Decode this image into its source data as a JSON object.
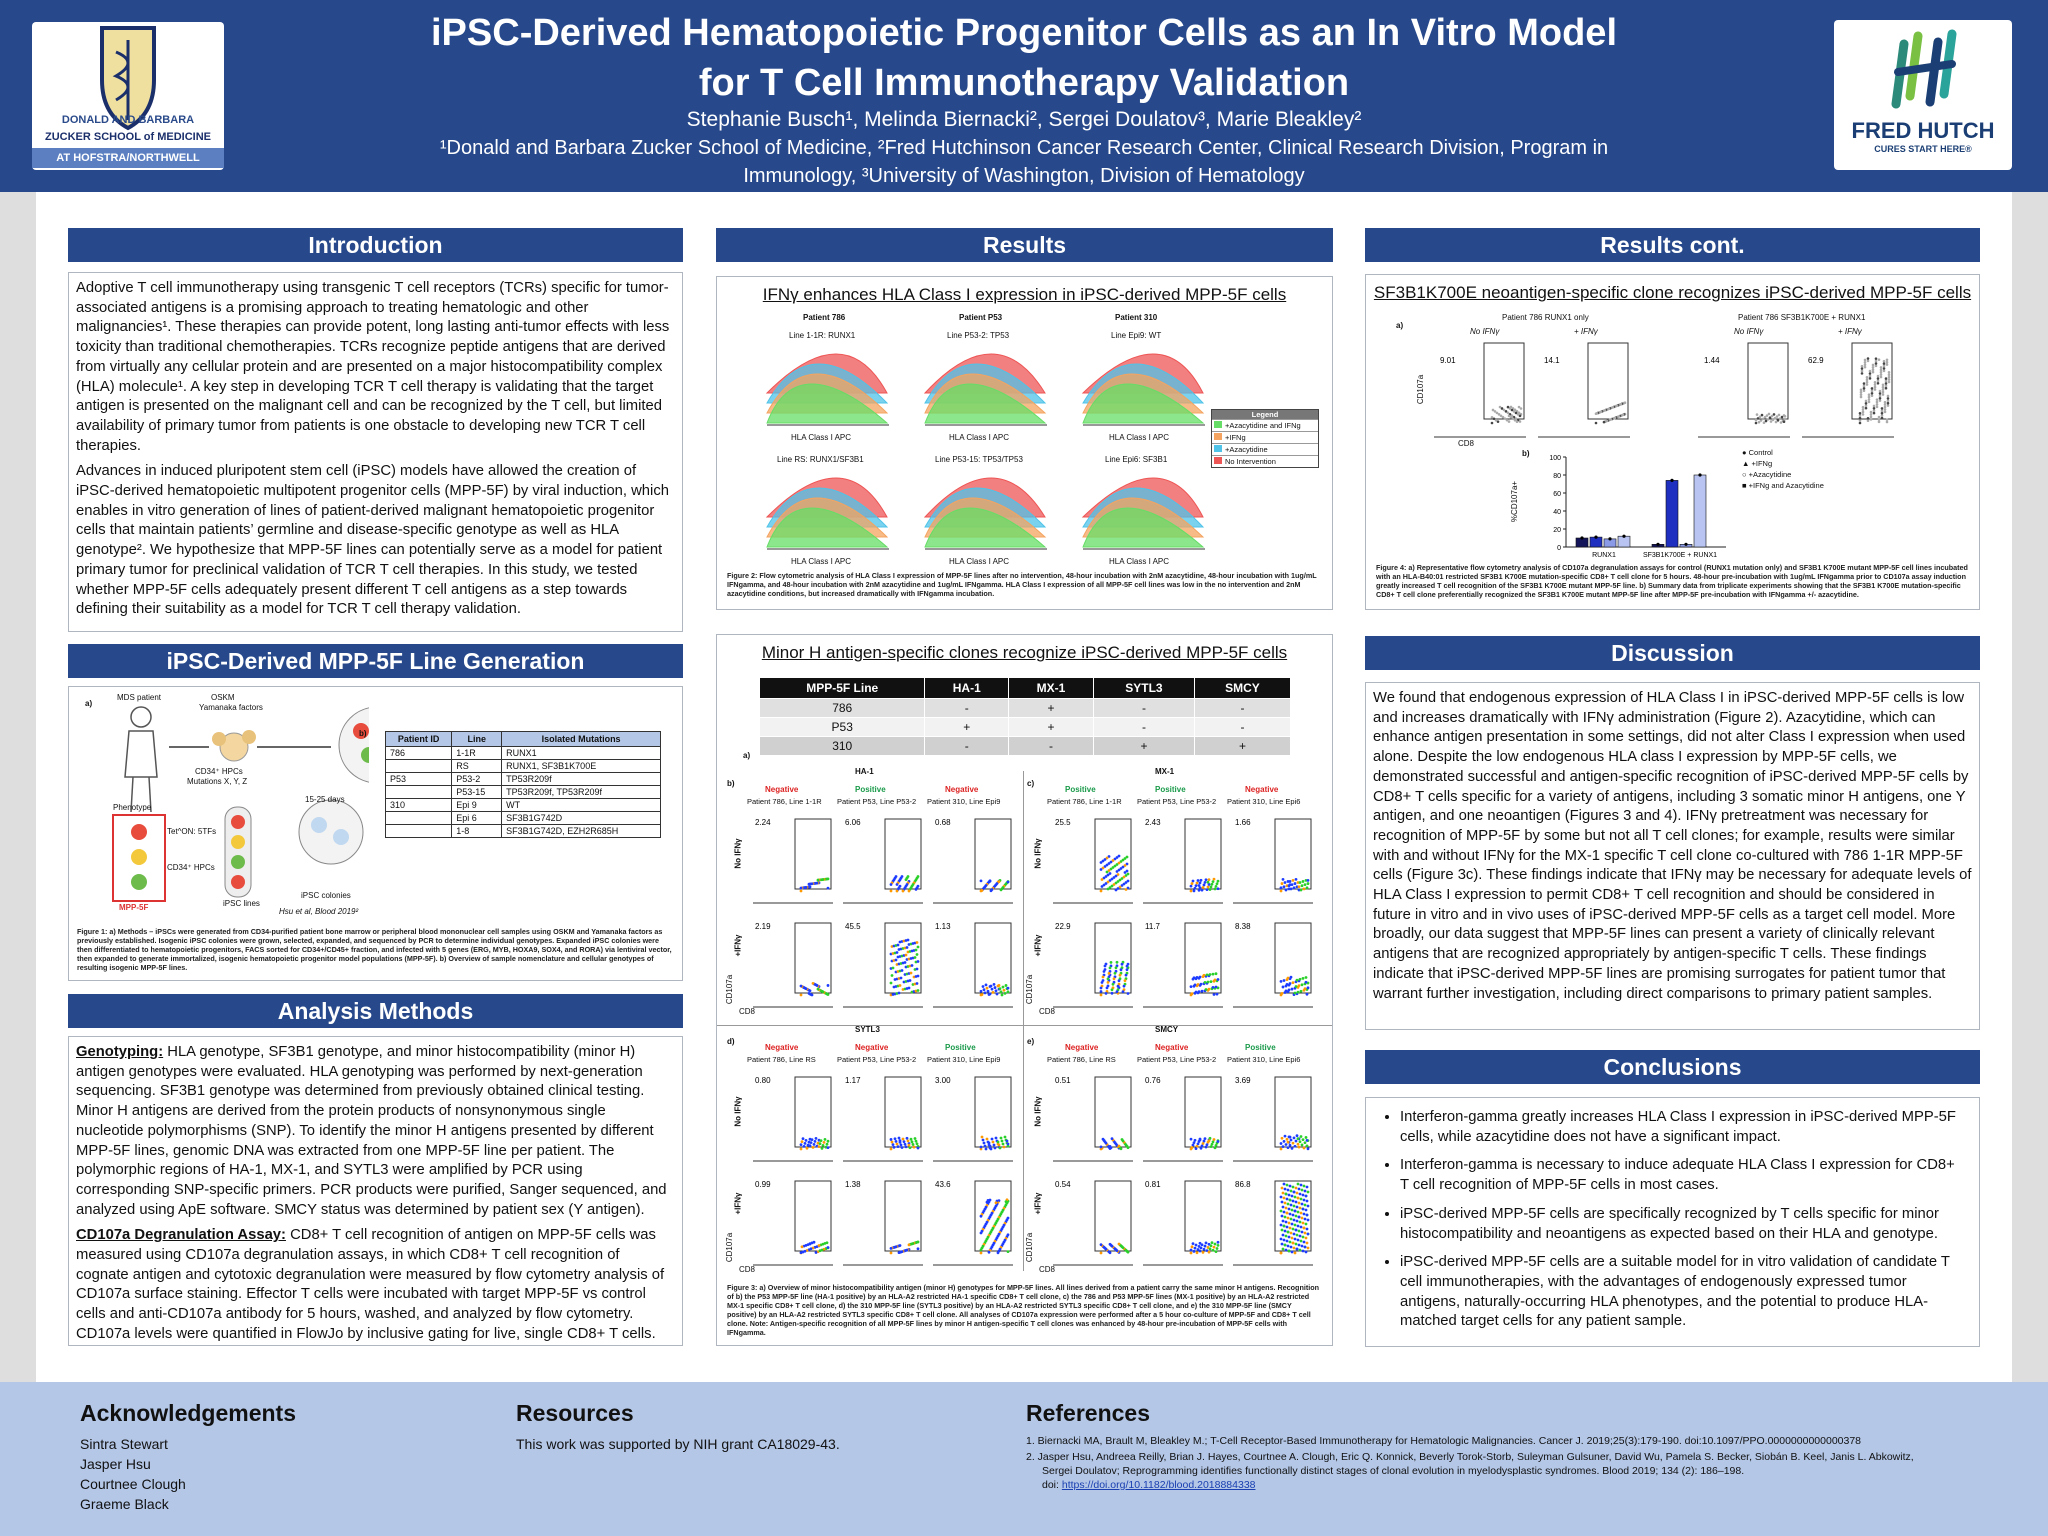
{
  "header": {
    "title_line1": "iPSC-Derived Hematopoietic Progenitor Cells as an In Vitro Model",
    "title_line2": "for T Cell Immunotherapy Validation",
    "authors": "Stephanie Busch¹, Melinda Biernacki², Sergei Doulatov³, Marie Bleakley²",
    "affiliations": "¹Donald and Barbara Zucker School of Medicine, ²Fred Hutchinson Cancer Research Center, Clinical Research Division, Program in Immunology, ³University of Washington, Division of Hematology",
    "logo_left_l1": "DONALD AND BARBARA",
    "logo_left_l2": "ZUCKER SCHOOL of MEDICINE",
    "logo_left_l3": "AT HOFSTRA/NORTHWELL",
    "logo_right_name": "FRED HUTCH",
    "logo_right_tag": "CURES START HERE®"
  },
  "intro": {
    "heading": "Introduction",
    "p1": "Adoptive T cell immunotherapy using transgenic T cell receptors (TCRs) specific for tumor-associated antigens is a promising approach to treating hematologic and other malignancies¹. These therapies can provide potent, long lasting anti-tumor effects with less toxicity than traditional chemotherapies. TCRs recognize peptide antigens that are derived from virtually any cellular protein and are presented on a major histocompatibility complex (HLA) molecule¹. A key step in developing TCR T cell therapy is validating that the target antigen is presented on the malignant cell and can be recognized by the T cell, but limited availability of primary tumor from patients is one obstacle to developing new TCR T cell therapies.",
    "p2": "Advances in induced pluripotent stem cell (iPSC) models have allowed the creation of iPSC-derived hematopoietic multipotent progenitor cells (MPP-5F) by viral induction, which enables in vitro generation of lines of patient-derived malignant hematopoietic progenitor cells that maintain patients’ germline and disease-specific genotype as well as HLA genotype². We hypothesize that MPP-5F lines can potentially serve as a model for patient primary tumor for preclinical validation of TCR T cell therapies. In this study, we tested whether MPP-5F cells adequately present different T cell antigens as a step towards defining their suitability as a model for TCR T cell therapy validation."
  },
  "mpp": {
    "heading": "iPSC-Derived MPP-5F Line Generation",
    "labels": [
      "a)",
      "MDS patient",
      "OSKM",
      "Yamanaka factors",
      "CD34⁺ HPCs",
      "Mutations X, Y, Z",
      "15-25 days",
      "Phenotype",
      "Tet^ON: 5TFs",
      "CD34⁺ HPCs",
      "iPSC lines",
      "iPSC colonies",
      "MPP-5F",
      "Hsu et al, Blood 2019²",
      "b)"
    ],
    "table_head": [
      "Patient ID",
      "Line",
      "Isolated Mutations"
    ],
    "table_rows": [
      [
        "786",
        "1-1R",
        "RUNX1"
      ],
      [
        "",
        "RS",
        "RUNX1, SF3B1K700E"
      ],
      [
        "P53",
        "P53-2",
        "TP53R209f"
      ],
      [
        "",
        "P53-15",
        "TP53R209f, TP53R209f"
      ],
      [
        "310",
        "Epi 9",
        "WT"
      ],
      [
        "",
        "Epi 6",
        "SF3B1G742D"
      ],
      [
        "",
        "1-8",
        "SF3B1G742D, EZH2R685H"
      ]
    ],
    "caption": "Figure 1: a) Methods – iPSCs were generated from CD34-purified patient bone marrow or peripheral blood mononuclear cell samples using OSKM and Yamanaka factors as previously established. Isogenic iPSC colonies were grown, selected, expanded, and sequenced by PCR to determine individual genotypes. Expanded iPSC colonies were then differentiated to hematopoietic progenitors, FACS sorted for CD34+/CD45+ fraction, and infected with 5 genes (ERG, MYB, HOXA9, SOX4, and RORA) via lentiviral vector, then expanded to generate immortalized, isogenic hematopoietic progenitor model populations (MPP-5F). b) Overview of sample nomenclature and cellular genotypes of resulting isogenic MPP-5F lines."
  },
  "methods": {
    "heading": "Analysis Methods",
    "geno_label": "Genotyping:",
    "geno_text": " HLA genotype, SF3B1 genotype, and minor histocompatibility (minor H) antigen genotypes were evaluated. HLA genotyping was performed by next-generation sequencing. SF3B1 genotype was determined from previously obtained clinical testing. Minor H antigens are derived from the protein products of nonsynonymous single nucleotide polymorphisms (SNP). To identify the minor H antigens presented by different MPP-5F lines, genomic DNA was extracted from one MPP-5F line per patient. The polymorphic regions of HA-1, MX-1, and SYTL3 were amplified by PCR using corresponding SNP-specific primers. PCR products were purified, Sanger sequenced, and analyzed using ApE software. SMCY status was determined by patient sex (Y antigen).",
    "cd_label": "CD107a Degranulation Assay:",
    "cd_text": " CD8+ T cell recognition of antigen on MPP-5F cells was measured using CD107a degranulation assays, in which CD8+ T cell recognition of cognate antigen and cytotoxic degranulation were measured by flow cytometry analysis of CD107a surface staining. Effector T cells were incubated with target MPP-5F vs control cells and anti-CD107a antibody for 5 hours, washed, and analyzed by flow cytometry. CD107a levels were quantified in FlowJo by inclusive gating for live, single CD8+ T cells."
  },
  "results": {
    "heading": "Results",
    "fig2_title": "IFNγ enhances HLA Class I expression in iPSC-derived MPP-5F cells",
    "fig2_patients": [
      "Patient 786",
      "Patient P53",
      "Patient 310"
    ],
    "fig2_lines_top": [
      "Line 1-1R: RUNX1",
      "Line P53-2: TP53",
      "Line Epi9: WT"
    ],
    "fig2_lines_bot": [
      "Line RS: RUNX1/SF3B1",
      "Line P53-15: TP53/TP53",
      "Line Epi6: SF3B1"
    ],
    "fig2_axis": "HLA Class I APC",
    "legend_title": "Legend",
    "legend_items": [
      {
        "label": "+Azacytidine and IFNg",
        "color": "#66dd66"
      },
      {
        "label": "+IFNg",
        "color": "#f4a460"
      },
      {
        "label": "+Azacytidine",
        "color": "#4fc3e8"
      },
      {
        "label": "No Intervention",
        "color": "#ee5555"
      }
    ],
    "fig2_caption": "Figure 2: Flow cytometric analysis of HLA Class I expression of MPP-5F lines after no intervention, 48-hour incubation with 2nM azacytidine, 48-hour incubation with 1ug/mL IFNgamma, and 48-hour incubation with 2nM azacytidine and 1ug/mL IFNgamma. HLA Class I expression of all MPP-5F cell lines was low in the no intervention and 2nM azacytidine conditions, but increased dramatically with IFNgamma incubation.",
    "fig3_title": "Minor H antigen-specific clones recognize iPSC-derived MPP-5F cells",
    "fig3_head": [
      "MPP-5F Line",
      "HA-1",
      "MX-1",
      "SYTL3",
      "SMCY"
    ],
    "fig3_rows": [
      [
        "786",
        "-",
        "+",
        "-",
        "-"
      ],
      [
        "P53",
        "+",
        "+",
        "-",
        "-"
      ],
      [
        "310",
        "-",
        "-",
        "+",
        "+"
      ]
    ],
    "fig3_panels": [
      {
        "tag": "b)",
        "name": "HA-1",
        "status": [
          "Negative",
          "Positive",
          "Negative"
        ],
        "lines": [
          "Patient 786, Line 1-1R",
          "Patient P53, Line P53-2",
          "Patient 310, Line Epi9"
        ],
        "top": [
          "2.24",
          "6.06",
          "0.68"
        ],
        "bot": [
          "2.19",
          "45.5",
          "1.13"
        ]
      },
      {
        "tag": "c)",
        "name": "MX-1",
        "status": [
          "Positive",
          "Positive",
          "Negative"
        ],
        "lines": [
          "Patient 786, Line 1-1R",
          "Patient P53, Line P53-2",
          "Patient 310, Line Epi6"
        ],
        "top": [
          "25.5",
          "2.43",
          "1.66"
        ],
        "bot": [
          "22.9",
          "11.7",
          "8.38"
        ]
      },
      {
        "tag": "d)",
        "name": "SYTL3",
        "status": [
          "Negative",
          "Negative",
          "Positive"
        ],
        "lines": [
          "Patient 786, Line RS",
          "Patient P53, Line P53-2",
          "Patient 310, Line Epi9"
        ],
        "top": [
          "0.80",
          "1.17",
          "3.00"
        ],
        "bot": [
          "0.99",
          "1.38",
          "43.6"
        ]
      },
      {
        "tag": "e)",
        "name": "SMCY",
        "status": [
          "Negative",
          "Negative",
          "Positive"
        ],
        "lines": [
          "Patient 786, Line RS",
          "Patient P53, Line P53-2",
          "Patient 310, Line Epi6"
        ],
        "top": [
          "0.51",
          "0.76",
          "3.69"
        ],
        "bot": [
          "0.54",
          "0.81",
          "86.8"
        ]
      }
    ],
    "row_labels": [
      "No IFNγ",
      "+IFNγ"
    ],
    "axis_x": "CD8",
    "axis_y": "CD107a",
    "a_tag": "a)",
    "fig3_caption": "Figure 3: a) Overview of minor histocompatibility antigen (minor H) genotypes for MPP-5F lines. All lines derived from a patient carry the same minor H antigens. Recognition of b) the P53 MPP-5F line (HA-1 positive) by an HLA-A2 restricted HA-1 specific CD8+ T cell clone, c) the 786 and P53 MPP-5F lines (MX-1 positive) by an HLA-A2 restricted MX-1 specific CD8+ T cell clone, d) the 310 MPP-5F line (SYTL3 positive) by an HLA-A2 restricted SYTL3 specific CD8+ T cell clone, and e) the 310 MPP-5F line (SMCY positive) by an HLA-A2 restricted SYTL3 specific CD8+ T cell clone. All analyses of CD107a expression were performed after a 5 hour co-culture of MPP-5F and CD8+ T cell clone. Note: Antigen-specific recognition of all MPP-5F lines by minor H antigen-specific T cell clones was enhanced by 48-hour pre-incubation of MPP-5F cells with IFNgamma."
  },
  "results2": {
    "heading": "Results cont.",
    "fig4_title": "SF3B1K700E neoantigen-specific clone recognizes iPSC-derived MPP-5F cells",
    "tag_a": "a)",
    "tag_b": "b)",
    "group1": "Patient 786 RUNX1 only",
    "group2": "Patient 786 SF3B1K700E + RUNX1",
    "conds": [
      "No IFNγ",
      "+ IFNγ",
      "No IFNγ",
      "+ IFNγ"
    ],
    "pcts": [
      "9.01",
      "14.1",
      "1.44",
      "62.9"
    ],
    "axis_x": "CD8",
    "axis_y": "CD107a",
    "bar_ylabel": "%CD107a+",
    "bar_legend": [
      "Control",
      "+IFNg",
      "+Azacytidine",
      "+IFNg and Azacytidine"
    ],
    "fig4_caption": "Figure 4: a) Representative flow cytometry analysis of CD107a degranulation assays for control (RUNX1 mutation only) and SF3B1 K700E mutant MPP-5F cell lines incubated with an HLA-B40:01 restricted SF3B1 K700E mutation-specific CD8+ T cell clone for 5 hours. 48-hour pre-incubation with 1ug/mL IFNgamma prior to CD107a assay induction greatly increased T cell recognition of the SF3B1 K700E mutant MPP-5F line. b) Summary data from triplicate experiments showing that the SF3B1 K700E mutation-specific CD8+ T cell clone preferentially recognized the SF3B1 K700E mutant MPP-5F line after MPP-5F pre-incubation with IFNgamma +/- azacytidine."
  },
  "chart_data": {
    "type": "bar",
    "title": "",
    "categories": [
      "RUNX1",
      "SF3B1K700E + RUNX1"
    ],
    "series": [
      {
        "name": "Control",
        "values": [
          10,
          3
        ]
      },
      {
        "name": "+IFNg",
        "values": [
          11,
          74
        ]
      },
      {
        "name": "+Azacytidine",
        "values": [
          9,
          3
        ]
      },
      {
        "name": "+IFNg and Azacytidine",
        "values": [
          12,
          80
        ]
      }
    ],
    "ylabel": "%CD107a+",
    "ylim": [
      0,
      100
    ],
    "yticks": [
      "0",
      "20",
      "40",
      "60",
      "80",
      "100"
    ],
    "colors": [
      "#14145a",
      "#1f2fbf",
      "#8a9ae6",
      "#b9c4f2"
    ]
  },
  "discussion": {
    "heading": "Discussion",
    "text": "We found that endogenous expression of HLA Class I in iPSC-derived MPP-5F cells is low and increases dramatically with IFNγ administration (Figure 2). Azacytidine, which can enhance antigen presentation in some settings, did not alter Class I expression when used alone. Despite the low endogenous HLA class I expression by MPP-5F cells, we demonstrated successful and antigen-specific recognition of iPSC-derived MPP-5F cells by CD8+ T cells specific for a variety of antigens, including 3 somatic minor H antigens, one Y antigen, and one neoantigen (Figures 3 and 4). IFNγ pretreatment was necessary for recognition of MPP-5F by some but not all T cell clones; for example, results were similar with and without IFNγ for the MX-1 specific T cell clone co-cultured with 786 1-1R MPP-5F cells (Figure 3c). These findings indicate that IFNγ may be necessary for adequate levels of HLA Class I expression to permit CD8+ T cell recognition and should be considered in future in vitro and in vivo uses of iPSC-derived MPP-5F cells as a target cell model. More broadly, our data suggest that MPP-5F lines can present a variety of clinically relevant antigens that are recognized appropriately by antigen-specific T cells. These findings indicate that iPSC-derived MPP-5F lines are promising surrogates for patient tumor that warrant further investigation, including direct comparisons to primary patient samples."
  },
  "conclusions": {
    "heading": "Conclusions",
    "items": [
      "Interferon-gamma greatly increases HLA Class I expression in iPSC-derived MPP-5F cells, while azacytidine does not have a significant impact.",
      "Interferon-gamma is necessary to induce adequate HLA Class I expression for CD8+ T cell recognition of MPP-5F cells in most cases.",
      "iPSC-derived MPP-5F cells are specifically recognized by T cells specific for minor histocompatibility and neoantigens as expected based on their HLA and genotype.",
      "iPSC-derived MPP-5F cells are a suitable model for in vitro validation of candidate T cell immunotherapies, with the advantages of endogenously expressed tumor antigens, naturally-occurring HLA phenotypes, and the potential to produce HLA-matched target cells for any patient sample."
    ]
  },
  "footer": {
    "ack_heading": "Acknowledgements",
    "ack_names": [
      "Sintra Stewart",
      "Jasper Hsu",
      "Courtnee Clough",
      "Graeme Black"
    ],
    "res_heading": "Resources",
    "res_text": "This work was supported by NIH grant CA18029-43.",
    "ref_heading": "References",
    "ref1": "1.   Biernacki MA, Brault M, Bleakley M.; T-Cell Receptor-Based Immunotherapy for Hematologic Malignancies. Cancer J. 2019;25(3):179-190. doi:10.1097/PPO.0000000000000378",
    "ref2": "2.   Jasper Hsu, Andreea Reilly, Brian J. Hayes, Courtnee A. Clough, Eric Q. Konnick, Beverly Torok-Storb, Suleyman Gulsuner, David Wu, Pamela S. Becker, Siobán B. Keel, Janis L. Abkowitz,",
    "ref2b": "Sergei Doulatov; Reprogramming identifies functionally distinct stages of clonal evolution in myelodysplastic syndromes. Blood 2019; 134 (2): 186–198.",
    "ref2c_label": "doi: ",
    "ref2c_link": "https://doi.org/10.1182/blood.2018884338"
  }
}
